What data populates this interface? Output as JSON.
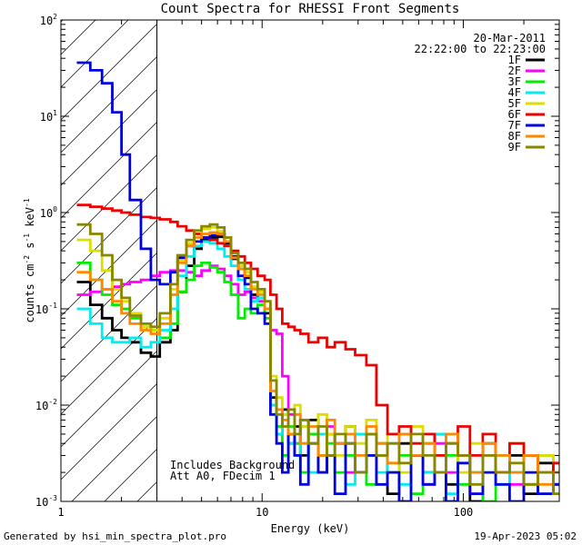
{
  "chart_data": {
    "type": "line",
    "title": "Count Spectra for RHESSI Front Segments",
    "xlabel": "Energy (keV)",
    "ylabel": "counts cm^-2 s^-1 keV^-1",
    "ylabel_parts": {
      "base": "counts cm",
      "exp1": "-2",
      "mid1": " s",
      "exp2": "-1",
      "mid2": " keV",
      "exp3": "-1"
    },
    "xscale": "log",
    "yscale": "log",
    "xlim": [
      1,
      300
    ],
    "ylim": [
      0.001,
      100
    ],
    "x_ticks": [
      {
        "value": 1,
        "label": "1"
      },
      {
        "value": 10,
        "label": "10"
      },
      {
        "value": 100,
        "label": "100"
      }
    ],
    "y_ticks": [
      {
        "value": 0.001,
        "base": "10",
        "exp": "-3"
      },
      {
        "value": 0.01,
        "base": "10",
        "exp": "-2"
      },
      {
        "value": 0.1,
        "base": "10",
        "exp": "-1"
      },
      {
        "value": 1,
        "base": "10",
        "exp": "0"
      },
      {
        "value": 10,
        "base": "10",
        "exp": "1"
      },
      {
        "value": 100,
        "base": "10",
        "exp": "2"
      }
    ],
    "hatched_region": {
      "x0": 1,
      "x1": 3
    },
    "date": "20-Mar-2011",
    "time_range": "22:22:00 to 22:23:00",
    "annotations": [
      "Includes Background",
      "Att A0, FDecim 1"
    ],
    "series": [
      {
        "name": "1F",
        "color": "#000000",
        "x": [
          1.2,
          1.4,
          1.6,
          1.8,
          2.0,
          2.2,
          2.5,
          2.8,
          3.1,
          3.5,
          3.8,
          4.2,
          4.6,
          5.0,
          5.5,
          6.0,
          6.5,
          7.0,
          7.6,
          8.2,
          8.8,
          9.5,
          10.3,
          11.0,
          11.8,
          12.6,
          13.5,
          14.5,
          15.5,
          17,
          19,
          21,
          23,
          26,
          29,
          33,
          37,
          42,
          48,
          55,
          63,
          72,
          82,
          94,
          108,
          125,
          145,
          170,
          200,
          235,
          280
        ],
        "y": [
          0.19,
          0.11,
          0.08,
          0.06,
          0.05,
          0.045,
          0.035,
          0.032,
          0.045,
          0.06,
          0.15,
          0.28,
          0.42,
          0.52,
          0.55,
          0.56,
          0.48,
          0.33,
          0.26,
          0.21,
          0.14,
          0.13,
          0.09,
          0.012,
          0.005,
          0.009,
          0.004,
          0.006,
          0.003,
          0.007,
          0.002,
          0.005,
          0.004,
          0.006,
          0.002,
          0.005,
          0.003,
          0.0012,
          0.004,
          0.003,
          0.002,
          0.005,
          0.0015,
          0.003,
          0.001,
          0.004,
          0.002,
          0.003,
          0.0012,
          0.0025,
          0.0015
        ]
      },
      {
        "name": "2F",
        "color": "#ff00ff",
        "x": [
          1.2,
          1.4,
          1.6,
          1.8,
          2.0,
          2.2,
          2.5,
          2.8,
          3.1,
          3.5,
          3.8,
          4.2,
          4.6,
          5.0,
          5.5,
          6.0,
          6.5,
          7.0,
          7.6,
          8.2,
          8.8,
          9.5,
          10.3,
          11.0,
          11.8,
          12.6,
          13.5,
          14.5,
          15.5,
          17,
          19,
          21,
          23,
          26,
          29,
          33,
          37,
          42,
          48,
          55,
          63,
          72,
          82,
          94,
          108,
          125,
          145,
          170,
          200,
          235,
          280
        ],
        "y": [
          0.14,
          0.15,
          0.16,
          0.17,
          0.18,
          0.19,
          0.2,
          0.22,
          0.24,
          0.25,
          0.25,
          0.24,
          0.22,
          0.25,
          0.28,
          0.26,
          0.22,
          0.18,
          0.14,
          0.15,
          0.13,
          0.12,
          0.1,
          0.06,
          0.055,
          0.02,
          0.008,
          0.004,
          0.007,
          0.005,
          0.003,
          0.006,
          0.004,
          0.002,
          0.005,
          0.003,
          0.004,
          0.002,
          0.005,
          0.003,
          0.0015,
          0.004,
          0.002,
          0.003,
          0.0012,
          0.003,
          0.002,
          0.0015,
          0.003,
          0.0012,
          0.002
        ]
      },
      {
        "name": "3F",
        "color": "#00ee00",
        "x": [
          1.2,
          1.4,
          1.6,
          1.8,
          2.0,
          2.2,
          2.5,
          2.8,
          3.1,
          3.5,
          3.8,
          4.2,
          4.6,
          5.0,
          5.5,
          6.0,
          6.5,
          7.0,
          7.6,
          8.2,
          8.8,
          9.5,
          10.3,
          11.0,
          11.8,
          12.6,
          13.5,
          14.5,
          15.5,
          17,
          19,
          21,
          23,
          26,
          29,
          33,
          37,
          42,
          48,
          55,
          63,
          72,
          82,
          94,
          108,
          125,
          145,
          170,
          200,
          235,
          280
        ],
        "y": [
          0.3,
          0.2,
          0.14,
          0.11,
          0.1,
          0.08,
          0.065,
          0.06,
          0.05,
          0.07,
          0.15,
          0.2,
          0.28,
          0.3,
          0.27,
          0.24,
          0.19,
          0.14,
          0.08,
          0.1,
          0.09,
          0.11,
          0.08,
          0.01,
          0.006,
          0.003,
          0.006,
          0.004,
          0.002,
          0.005,
          0.003,
          0.004,
          0.002,
          0.003,
          0.005,
          0.0015,
          0.004,
          0.002,
          0.003,
          0.0012,
          0.004,
          0.002,
          0.003,
          0.0015,
          0.002,
          0.001,
          0.003,
          0.002,
          0.0015,
          0.003,
          0.0012
        ]
      },
      {
        "name": "4F",
        "color": "#00eeee",
        "x": [
          1.2,
          1.4,
          1.6,
          1.8,
          2.0,
          2.2,
          2.5,
          2.8,
          3.1,
          3.5,
          3.8,
          4.2,
          4.6,
          5.0,
          5.5,
          6.0,
          6.5,
          7.0,
          7.6,
          8.2,
          8.8,
          9.5,
          10.3,
          11.0,
          11.8,
          12.6,
          13.5,
          14.5,
          15.5,
          17,
          19,
          21,
          23,
          26,
          29,
          33,
          37,
          42,
          48,
          55,
          63,
          72,
          82,
          94,
          108,
          125,
          145,
          170,
          200,
          235,
          280
        ],
        "y": [
          0.1,
          0.07,
          0.05,
          0.045,
          0.045,
          0.05,
          0.04,
          0.045,
          0.06,
          0.1,
          0.22,
          0.35,
          0.45,
          0.5,
          0.48,
          0.42,
          0.35,
          0.28,
          0.2,
          0.16,
          0.12,
          0.13,
          0.1,
          0.01,
          0.005,
          0.008,
          0.004,
          0.003,
          0.006,
          0.002,
          0.005,
          0.003,
          0.004,
          0.0015,
          0.005,
          0.003,
          0.002,
          0.004,
          0.0015,
          0.003,
          0.002,
          0.005,
          0.0012,
          0.003,
          0.002,
          0.004,
          0.0015,
          0.002,
          0.003,
          0.0012,
          0.002
        ]
      },
      {
        "name": "5F",
        "color": "#dddd00",
        "x": [
          1.2,
          1.4,
          1.6,
          1.8,
          2.0,
          2.2,
          2.5,
          2.8,
          3.1,
          3.5,
          3.8,
          4.2,
          4.6,
          5.0,
          5.5,
          6.0,
          6.5,
          7.0,
          7.6,
          8.2,
          8.8,
          9.5,
          10.3,
          11.0,
          11.8,
          12.6,
          13.5,
          14.5,
          15.5,
          17,
          19,
          21,
          23,
          26,
          29,
          33,
          37,
          42,
          48,
          55,
          63,
          72,
          82,
          94,
          108,
          125,
          145,
          170,
          200,
          235,
          280
        ],
        "y": [
          0.52,
          0.4,
          0.25,
          0.16,
          0.12,
          0.09,
          0.065,
          0.06,
          0.08,
          0.16,
          0.32,
          0.48,
          0.6,
          0.68,
          0.7,
          0.64,
          0.55,
          0.35,
          0.28,
          0.24,
          0.17,
          0.15,
          0.1,
          0.02,
          0.012,
          0.008,
          0.005,
          0.01,
          0.006,
          0.004,
          0.008,
          0.005,
          0.003,
          0.006,
          0.004,
          0.007,
          0.003,
          0.005,
          0.002,
          0.006,
          0.004,
          0.003,
          0.005,
          0.002,
          0.004,
          0.003,
          0.002,
          0.004,
          0.0015,
          0.003,
          0.002
        ]
      },
      {
        "name": "6F",
        "color": "#ee0000",
        "x": [
          1.2,
          1.4,
          1.6,
          1.8,
          2.0,
          2.2,
          2.5,
          2.8,
          3.1,
          3.5,
          3.8,
          4.2,
          4.6,
          5.0,
          5.5,
          6.0,
          6.5,
          7.0,
          7.6,
          8.2,
          8.8,
          9.5,
          10.3,
          11.0,
          11.8,
          12.6,
          13.5,
          14.5,
          15.5,
          17,
          19,
          21,
          23,
          26,
          29,
          33,
          37,
          42,
          48,
          55,
          63,
          72,
          82,
          94,
          108,
          125,
          145,
          170,
          200,
          235,
          280
        ],
        "y": [
          1.2,
          1.15,
          1.1,
          1.05,
          1.0,
          0.95,
          0.9,
          0.88,
          0.85,
          0.8,
          0.72,
          0.65,
          0.6,
          0.55,
          0.52,
          0.48,
          0.45,
          0.4,
          0.35,
          0.3,
          0.26,
          0.22,
          0.2,
          0.14,
          0.1,
          0.07,
          0.065,
          0.06,
          0.055,
          0.045,
          0.05,
          0.04,
          0.045,
          0.038,
          0.033,
          0.026,
          0.01,
          0.005,
          0.006,
          0.004,
          0.005,
          0.003,
          0.004,
          0.006,
          0.003,
          0.005,
          0.002,
          0.004,
          0.003,
          0.002,
          0.0025
        ]
      },
      {
        "name": "7F",
        "color": "#0000dd",
        "x": [
          1.2,
          1.4,
          1.6,
          1.8,
          2.0,
          2.2,
          2.5,
          2.8,
          3.1,
          3.5,
          3.8,
          4.2,
          4.6,
          5.0,
          5.5,
          6.0,
          6.5,
          7.0,
          7.6,
          8.2,
          8.8,
          9.5,
          10.3,
          11.0,
          11.8,
          12.6,
          13.5,
          14.5,
          15.5,
          17,
          19,
          21,
          23,
          26,
          29,
          33,
          37,
          42,
          48,
          55,
          63,
          72,
          82,
          94,
          108,
          125,
          145,
          170,
          200,
          235,
          280
        ],
        "y": [
          36,
          30,
          22,
          11,
          4,
          1.35,
          0.42,
          0.2,
          0.18,
          0.24,
          0.34,
          0.45,
          0.5,
          0.55,
          0.58,
          0.6,
          0.5,
          0.35,
          0.22,
          0.18,
          0.1,
          0.09,
          0.07,
          0.008,
          0.004,
          0.002,
          0.005,
          0.003,
          0.0015,
          0.004,
          0.002,
          0.003,
          0.0012,
          0.004,
          0.002,
          0.003,
          0.0015,
          0.002,
          0.001,
          0.003,
          0.0015,
          0.002,
          0.001,
          0.0025,
          0.0012,
          0.002,
          0.0015,
          0.001,
          0.002,
          0.0012,
          0.0015
        ]
      },
      {
        "name": "8F",
        "color": "#ff8800",
        "x": [
          1.2,
          1.4,
          1.6,
          1.8,
          2.0,
          2.2,
          2.5,
          2.8,
          3.1,
          3.5,
          3.8,
          4.2,
          4.6,
          5.0,
          5.5,
          6.0,
          6.5,
          7.0,
          7.6,
          8.2,
          8.8,
          9.5,
          10.3,
          11.0,
          11.8,
          12.6,
          13.5,
          14.5,
          15.5,
          17,
          19,
          21,
          23,
          26,
          29,
          33,
          37,
          42,
          48,
          55,
          63,
          72,
          82,
          94,
          108,
          125,
          145,
          170,
          200,
          235,
          280
        ],
        "y": [
          0.24,
          0.2,
          0.16,
          0.12,
          0.09,
          0.07,
          0.06,
          0.055,
          0.07,
          0.14,
          0.3,
          0.45,
          0.55,
          0.6,
          0.62,
          0.6,
          0.5,
          0.34,
          0.26,
          0.22,
          0.16,
          0.14,
          0.1,
          0.014,
          0.009,
          0.007,
          0.005,
          0.008,
          0.004,
          0.006,
          0.003,
          0.007,
          0.004,
          0.005,
          0.003,
          0.006,
          0.004,
          0.0025,
          0.005,
          0.003,
          0.004,
          0.002,
          0.005,
          0.003,
          0.002,
          0.004,
          0.003,
          0.002,
          0.003,
          0.0015,
          0.002
        ]
      },
      {
        "name": "9F",
        "color": "#888800",
        "x": [
          1.2,
          1.4,
          1.6,
          1.8,
          2.0,
          2.2,
          2.5,
          2.8,
          3.1,
          3.5,
          3.8,
          4.2,
          4.6,
          5.0,
          5.5,
          6.0,
          6.5,
          7.0,
          7.6,
          8.2,
          8.8,
          9.5,
          10.3,
          11.0,
          11.8,
          12.6,
          13.5,
          14.5,
          15.5,
          17,
          19,
          21,
          23,
          26,
          29,
          33,
          37,
          42,
          48,
          55,
          63,
          72,
          82,
          94,
          108,
          125,
          145,
          170,
          200,
          235,
          280
        ],
        "y": [
          0.75,
          0.6,
          0.36,
          0.2,
          0.13,
          0.085,
          0.07,
          0.065,
          0.09,
          0.18,
          0.36,
          0.52,
          0.65,
          0.72,
          0.75,
          0.7,
          0.55,
          0.38,
          0.3,
          0.26,
          0.19,
          0.16,
          0.12,
          0.018,
          0.008,
          0.006,
          0.009,
          0.005,
          0.007,
          0.004,
          0.006,
          0.003,
          0.005,
          0.004,
          0.002,
          0.005,
          0.003,
          0.004,
          0.0025,
          0.005,
          0.003,
          0.002,
          0.004,
          0.003,
          0.0015,
          0.003,
          0.002,
          0.0025,
          0.0015,
          0.002,
          0.0012
        ]
      }
    ]
  },
  "footer": {
    "left": "Generated by hsi_min_spectra_plot.pro",
    "right": "19-Apr-2023 05:02"
  }
}
